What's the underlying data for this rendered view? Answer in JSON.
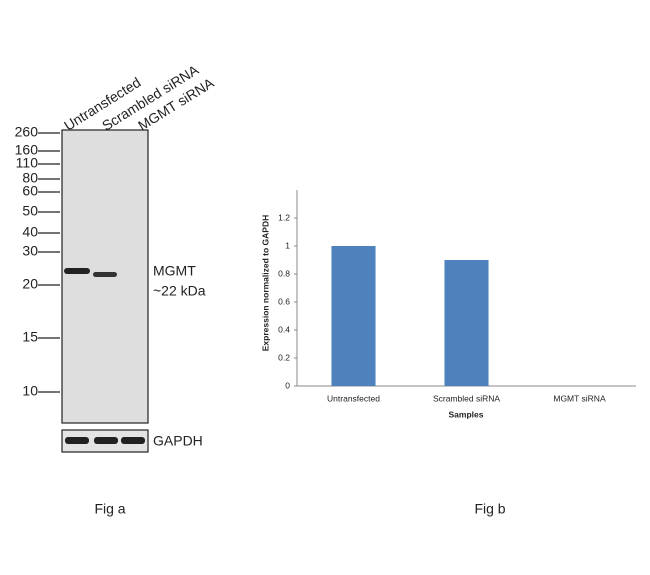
{
  "blot": {
    "lanes": [
      "Untransfected",
      "Scrambled siRNA",
      "MGMT siRNA"
    ],
    "markers": [
      260,
      160,
      110,
      80,
      60,
      50,
      40,
      30,
      20,
      15,
      10
    ],
    "band_label": "MGMT",
    "band_size": "~22 kDa",
    "control_label": "GAPDH",
    "caption": "Fig a"
  },
  "chart_data": {
    "type": "bar",
    "caption": "Fig b",
    "y_label": "Expression normalized to GAPDH",
    "x_label": "Samples",
    "categories": [
      "Untransfected",
      "Scrambled siRNA",
      "MGMT siRNA"
    ],
    "values": [
      1,
      0.9,
      0
    ],
    "color": "#4f81bd",
    "ylim": [
      0,
      1.4
    ],
    "yticks": [
      0,
      0.2,
      0.4,
      0.6,
      0.8,
      1,
      1.2
    ],
    "grid": false
  }
}
